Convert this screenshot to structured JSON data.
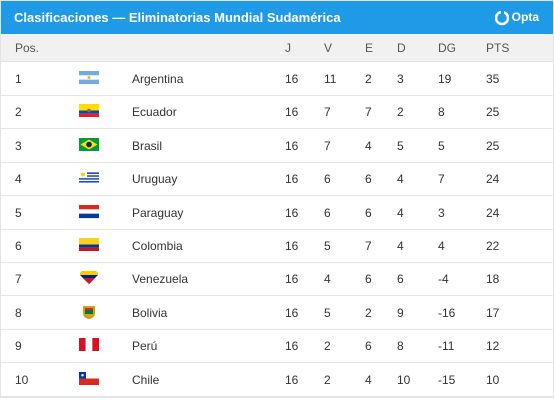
{
  "header": {
    "title": "Clasificaciones — Eliminatorias Mundial Sudamérica",
    "brand": "Opta"
  },
  "table": {
    "columns": [
      "Pos.",
      "J",
      "V",
      "E",
      "D",
      "DG",
      "PTS"
    ],
    "rows": [
      [
        1,
        "Argentina",
        16,
        11,
        2,
        3,
        19,
        35
      ],
      [
        2,
        "Ecuador",
        16,
        7,
        7,
        2,
        8,
        25
      ],
      [
        3,
        "Brasil",
        16,
        7,
        4,
        5,
        5,
        25
      ],
      [
        4,
        "Uruguay",
        16,
        6,
        6,
        4,
        7,
        24
      ],
      [
        5,
        "Paraguay",
        16,
        6,
        6,
        4,
        3,
        24
      ],
      [
        6,
        "Colombia",
        16,
        5,
        7,
        4,
        4,
        22
      ],
      [
        7,
        "Venezuela",
        16,
        4,
        6,
        6,
        -4,
        18
      ],
      [
        8,
        "Bolivia",
        16,
        5,
        2,
        9,
        -16,
        17
      ],
      [
        9,
        "Perú",
        16,
        2,
        6,
        8,
        -11,
        12
      ],
      [
        10,
        "Chile",
        16,
        2,
        4,
        10,
        -15,
        10
      ]
    ]
  }
}
